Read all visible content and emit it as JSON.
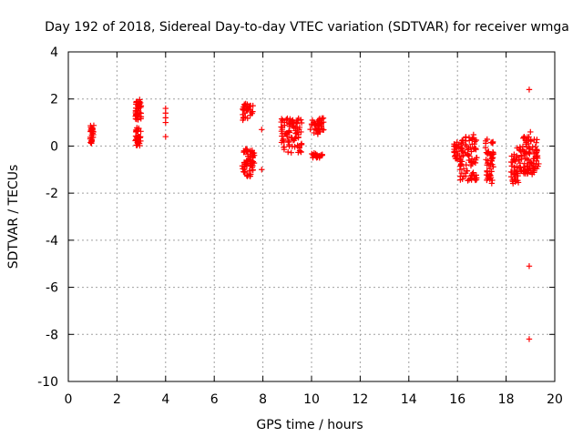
{
  "chart_data": {
    "type": "scatter",
    "title": "Day 192 of 2018, Sidereal Day-to-day VTEC variation (SDTVAR) for receiver wmga",
    "xlabel": "GPS time / hours",
    "ylabel": "SDTVAR / TECUs",
    "xlim": [
      0,
      20
    ],
    "ylim": [
      -10,
      4
    ],
    "xticks": [
      0,
      2,
      4,
      6,
      8,
      10,
      12,
      14,
      16,
      18,
      20
    ],
    "yticks": [
      -10,
      -8,
      -6,
      -4,
      -2,
      0,
      2,
      4
    ],
    "grid": true,
    "marker": "plus",
    "series": [
      {
        "name": "SDTVAR",
        "color": "#ff0000",
        "clusters": [
          {
            "x": [
              0.9,
              1.05
            ],
            "y": [
              0.1,
              0.9
            ],
            "n": 30
          },
          {
            "x": [
              2.75,
              3.0
            ],
            "y": [
              1.1,
              2.0
            ],
            "n": 40
          },
          {
            "x": [
              2.75,
              3.0
            ],
            "y": [
              0.0,
              0.8
            ],
            "n": 35
          },
          {
            "x": [
              7.15,
              7.6
            ],
            "y": [
              1.1,
              1.8
            ],
            "n": 30
          },
          {
            "x": [
              7.15,
              7.65
            ],
            "y": [
              -1.3,
              -0.1
            ],
            "n": 60
          },
          {
            "x": [
              8.75,
              9.6
            ],
            "y": [
              -0.3,
              1.2
            ],
            "n": 90
          },
          {
            "x": [
              9.95,
              10.5
            ],
            "y": [
              0.5,
              1.2
            ],
            "n": 45
          },
          {
            "x": [
              10.0,
              10.45
            ],
            "y": [
              -0.5,
              -0.3
            ],
            "n": 20
          },
          {
            "x": [
              15.85,
              16.1
            ],
            "y": [
              -0.6,
              0.2
            ],
            "n": 25
          },
          {
            "x": [
              16.1,
              16.8
            ],
            "y": [
              -1.5,
              0.5
            ],
            "n": 90
          },
          {
            "x": [
              17.15,
              17.5
            ],
            "y": [
              -1.6,
              0.3
            ],
            "n": 50
          },
          {
            "x": [
              18.2,
              18.6
            ],
            "y": [
              -1.6,
              0.0
            ],
            "n": 45
          },
          {
            "x": [
              18.6,
              19.05
            ],
            "y": [
              -1.2,
              0.4
            ],
            "n": 60
          },
          {
            "x": [
              19.05,
              19.35
            ],
            "y": [
              -1.2,
              0.3
            ],
            "n": 35
          }
        ],
        "points": [
          {
            "x": 4.0,
            "y": 1.6
          },
          {
            "x": 4.0,
            "y": 1.4
          },
          {
            "x": 4.0,
            "y": 1.2
          },
          {
            "x": 4.0,
            "y": 1.0
          },
          {
            "x": 4.0,
            "y": 0.4
          },
          {
            "x": 7.95,
            "y": 0.7
          },
          {
            "x": 7.95,
            "y": -1.0
          },
          {
            "x": 18.95,
            "y": 2.4
          },
          {
            "x": 19.0,
            "y": 0.6
          },
          {
            "x": 18.95,
            "y": -5.1
          },
          {
            "x": 18.95,
            "y": -8.2
          }
        ]
      }
    ]
  }
}
